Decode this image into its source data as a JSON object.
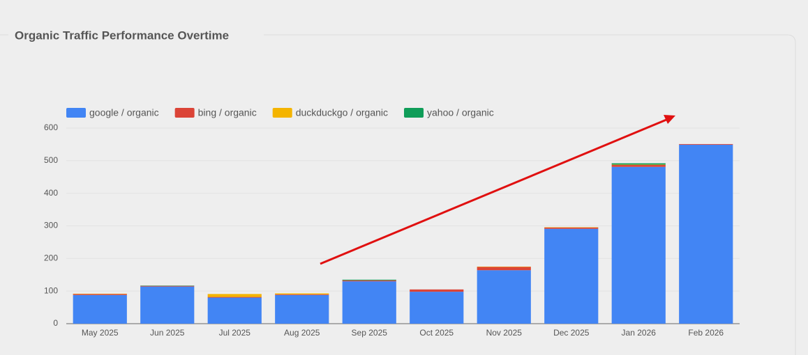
{
  "chart_data": {
    "type": "stacked-bar",
    "title": "Organic Traffic Performance Overtime",
    "categories": [
      "May 2025",
      "Jun 2025",
      "Jul 2025",
      "Aug 2025",
      "Sep 2025",
      "Oct 2025",
      "Nov 2025",
      "Dec 2025",
      "Jan 2026",
      "Feb 2026"
    ],
    "series": [
      {
        "name": "google / organic",
        "color": "#4285f4",
        "values": [
          88,
          114,
          80,
          88,
          130,
          98,
          164,
          291,
          481,
          549
        ]
      },
      {
        "name": "bing / organic",
        "color": "#db4437",
        "values": [
          3,
          2,
          2,
          2,
          3,
          7,
          10,
          4,
          6,
          2
        ]
      },
      {
        "name": "duckduckgo / organic",
        "color": "#f4b400",
        "values": [
          1,
          0,
          9,
          3,
          0,
          0,
          1,
          1,
          1,
          0
        ]
      },
      {
        "name": "yahoo / organic",
        "color": "#0f9d58",
        "values": [
          0,
          1,
          0,
          0,
          2,
          0,
          0,
          0,
          4,
          0
        ]
      }
    ],
    "ylim": [
      0,
      600
    ],
    "yticks": [
      0,
      100,
      200,
      300,
      400,
      500,
      600
    ],
    "grid": true,
    "legend": "top-left"
  }
}
